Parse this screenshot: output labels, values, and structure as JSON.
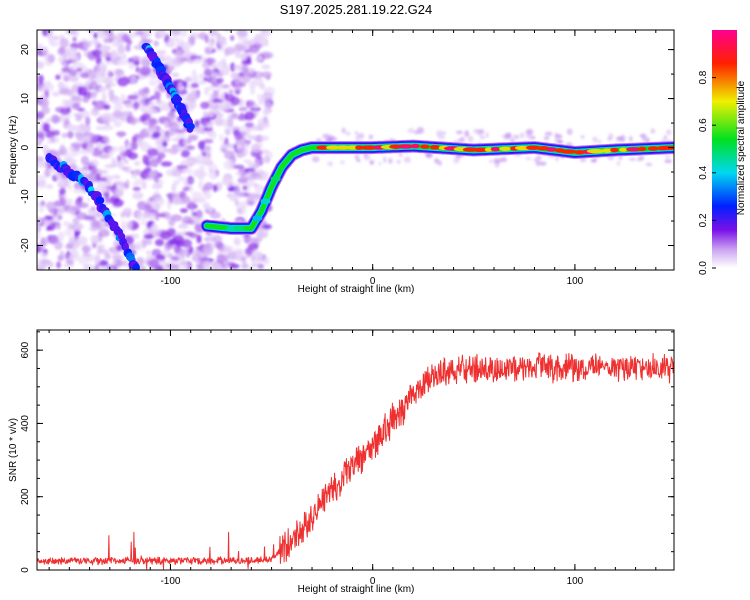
{
  "title": "S197.2025.281.19.22.G24",
  "chart_data": [
    {
      "type": "heatmap",
      "title": "S197.2025.281.19.22.G24",
      "xlabel": "Height of straight line (km)",
      "ylabel": "Frequency (Hz)",
      "xlim": [
        -166,
        149
      ],
      "ylim": [
        -25,
        24
      ],
      "xticks": [
        -100,
        0,
        100
      ],
      "xtick_labels": [
        "-100",
        "0",
        "100"
      ],
      "yticks": [
        -20,
        -10,
        0,
        10,
        20
      ],
      "ytick_labels": [
        "-20",
        "-10",
        "0",
        "10",
        "20"
      ],
      "colorbar": {
        "label": "Normalized spectral amplitude",
        "range": [
          0,
          1
        ],
        "ticks": [
          0,
          0.2,
          0.4,
          0.6,
          0.8
        ],
        "tick_labels": [
          "0.0",
          "0.2",
          "0.4",
          "0.6",
          "0.8"
        ],
        "colormap": "rainbow (white, violet, blue, cyan, green, yellow, red, magenta)"
      },
      "main_trace": {
        "description": "Bright ridge: flat near -16 Hz, ramps up, then flat near 0 Hz",
        "x": [
          -82,
          -70,
          -60,
          -55,
          -50,
          -45,
          -40,
          -35,
          -30,
          -20,
          0,
          20,
          50,
          80,
          100,
          120,
          149
        ],
        "y": [
          -16,
          -16.5,
          -16.5,
          -13,
          -8,
          -4,
          -1.5,
          -0.5,
          0,
          0,
          0,
          0.3,
          -0.5,
          0,
          -1,
          -0.5,
          0
        ]
      },
      "secondary_traces": [
        {
          "description": "diagonal ridge lower-left",
          "x": [
            -160,
            -140,
            -125,
            -117
          ],
          "y": [
            -2,
            -8,
            -18,
            -25
          ]
        },
        {
          "description": "diagonal ridge upper-left",
          "x": [
            -112,
            -100,
            -90
          ],
          "y": [
            21,
            12,
            4
          ]
        }
      ]
    },
    {
      "type": "line",
      "xlabel": "Height of straight line (km)",
      "ylabel": "SNR (10 * v/v)",
      "xlim": [
        -166,
        149
      ],
      "ylim": [
        0,
        655
      ],
      "xticks": [
        -100,
        0,
        100
      ],
      "xtick_labels": [
        "-100",
        "0",
        "100"
      ],
      "yticks": [
        0,
        200,
        400,
        600
      ],
      "ytick_labels": [
        "0",
        "200",
        "400",
        "600"
      ],
      "series": [
        {
          "name": "SNR",
          "color": "#ef3030",
          "x": [
            -166,
            -100,
            -60,
            -50,
            -40,
            -30,
            -20,
            -10,
            0,
            10,
            20,
            30,
            40,
            60,
            80,
            100,
            120,
            149
          ],
          "y": [
            25,
            25,
            25,
            30,
            80,
            150,
            220,
            280,
            340,
            410,
            480,
            530,
            550,
            545,
            555,
            550,
            555,
            550
          ]
        }
      ]
    }
  ]
}
